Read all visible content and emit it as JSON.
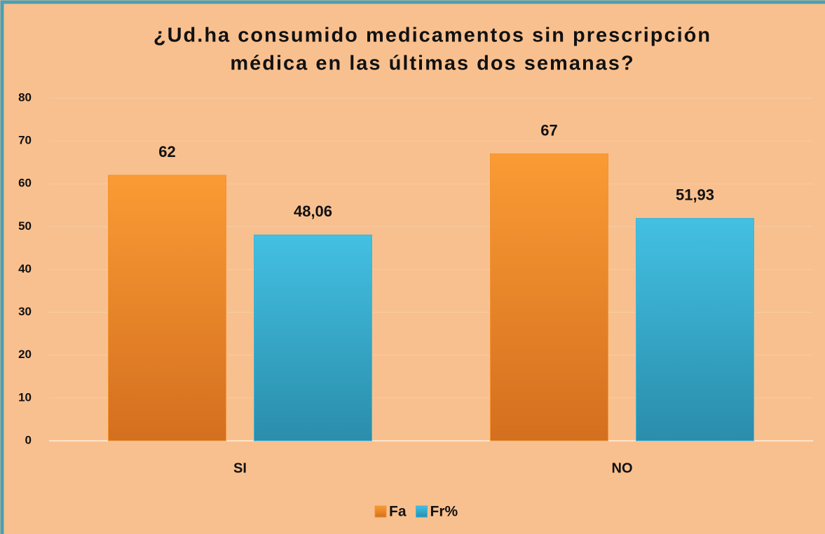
{
  "chart_data": {
    "type": "bar",
    "title": [
      "¿Ud.ha consumido medicamentos sin prescripción",
      "médica en las últimas dos semanas?"
    ],
    "categories": [
      "SI",
      "NO"
    ],
    "series": [
      {
        "name": "Fa",
        "color": "#f39430",
        "values": [
          62,
          67
        ],
        "value_labels": [
          "62",
          "67"
        ]
      },
      {
        "name": "Fr%",
        "color": "#3fb6d8",
        "values": [
          48.06,
          51.93
        ],
        "value_labels": [
          "48,06",
          "51,93"
        ]
      }
    ],
    "ylim": [
      0,
      80
    ],
    "yticks": [
      0,
      10,
      20,
      30,
      40,
      50,
      60,
      70,
      80
    ],
    "grid": true,
    "legend": "bottom"
  }
}
